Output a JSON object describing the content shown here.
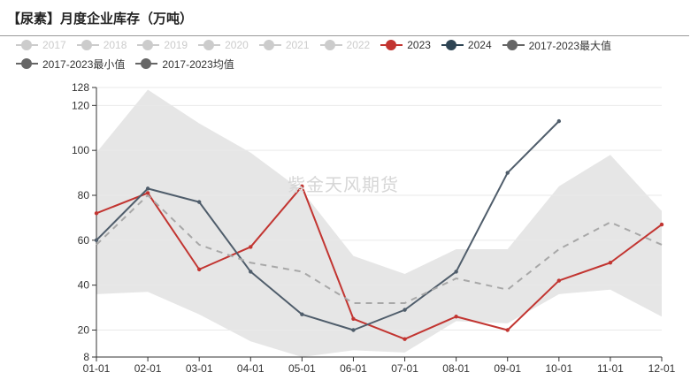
{
  "title": "【尿素】月度企业库存（万吨）",
  "watermark": "紫金天风期货",
  "legend_rows": [
    [
      {
        "label": "2017",
        "color": "#cccccc",
        "active": false
      },
      {
        "label": "2018",
        "color": "#cccccc",
        "active": false
      },
      {
        "label": "2019",
        "color": "#cccccc",
        "active": false
      },
      {
        "label": "2020",
        "color": "#cccccc",
        "active": false
      },
      {
        "label": "2021",
        "color": "#cccccc",
        "active": false
      },
      {
        "label": "2022",
        "color": "#cccccc",
        "active": false
      },
      {
        "label": "2023",
        "color": "#c23531",
        "active": true
      },
      {
        "label": "2024",
        "color": "#2f4554",
        "active": true
      },
      {
        "label": "2017-2023最大值",
        "color": "#666666",
        "active": true
      }
    ],
    [
      {
        "label": "2017-2023最小值",
        "color": "#666666",
        "active": true
      },
      {
        "label": "2017-2023均值",
        "color": "#666666",
        "active": true
      }
    ]
  ],
  "chart_data": {
    "type": "line",
    "categories": [
      "01-01",
      "02-01",
      "03-01",
      "04-01",
      "05-01",
      "06-01",
      "07-01",
      "08-01",
      "09-01",
      "10-01",
      "11-01",
      "12-01"
    ],
    "ylim": [
      8,
      128
    ],
    "yticks": [
      8,
      20,
      40,
      60,
      80,
      100,
      120,
      128
    ],
    "band": {
      "max": [
        99,
        127,
        112,
        99,
        82,
        53,
        45,
        56,
        56,
        84,
        98,
        73
      ],
      "min": [
        36,
        37,
        27,
        15,
        8,
        11,
        10,
        24,
        23,
        36,
        38,
        26
      ],
      "color": "#e6e6e6"
    },
    "series": [
      {
        "name": "2023",
        "color": "#c23531",
        "dashed": false,
        "values": [
          72,
          81,
          47,
          57,
          84,
          25,
          16,
          26,
          20,
          42,
          50,
          67
        ]
      },
      {
        "name": "2024",
        "color": "#4f5d6b",
        "dashed": false,
        "values": [
          60,
          83,
          77,
          46,
          27,
          20,
          29,
          46,
          90,
          113,
          null,
          null
        ]
      },
      {
        "name": "2017-2023均值",
        "color": "#a8a8a8",
        "dashed": true,
        "values": [
          58,
          80,
          58,
          50,
          46,
          32,
          32,
          43,
          38,
          56,
          68,
          58
        ]
      }
    ],
    "grid": true
  }
}
